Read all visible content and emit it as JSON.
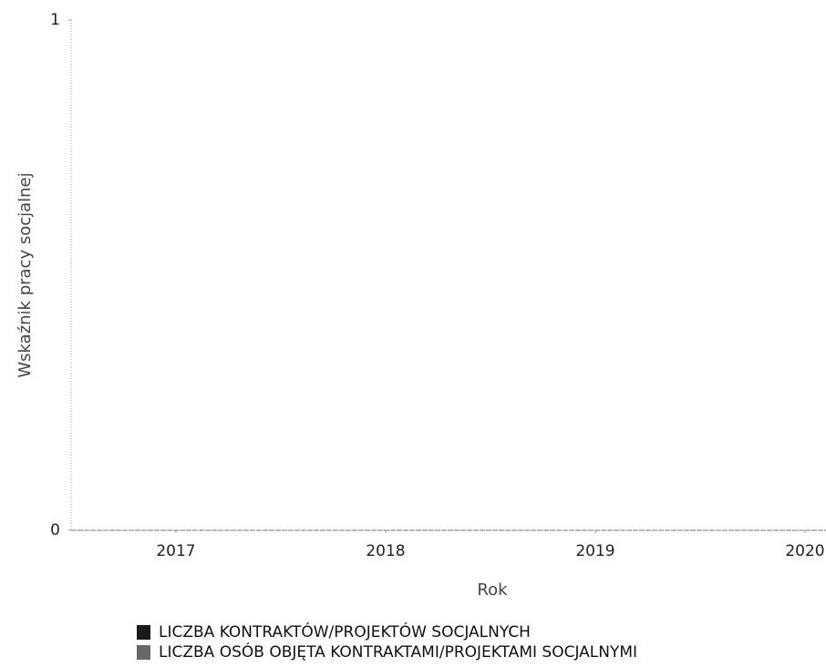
{
  "chart_data": {
    "type": "bar",
    "x_label": "Rok",
    "y_label": "Wskaźnik pracy socjalnej",
    "xlim": [
      2016.5,
      2020.1
    ],
    "xticks": [
      2017,
      2018,
      2019,
      2020
    ],
    "ylim": [
      0,
      1
    ],
    "yticks": [
      0,
      1
    ],
    "series": [
      {
        "name": "LICZBA KONTRAKTÓW/PROJEKTÓW SOCJALNYCH",
        "color": "#1a1a1a"
      },
      {
        "name": "LICZBA OSÓB OBJĘTA KONTRAKTAMI/PROJEKTAMI SOCJALNYMI",
        "color": "#666666"
      }
    ]
  }
}
